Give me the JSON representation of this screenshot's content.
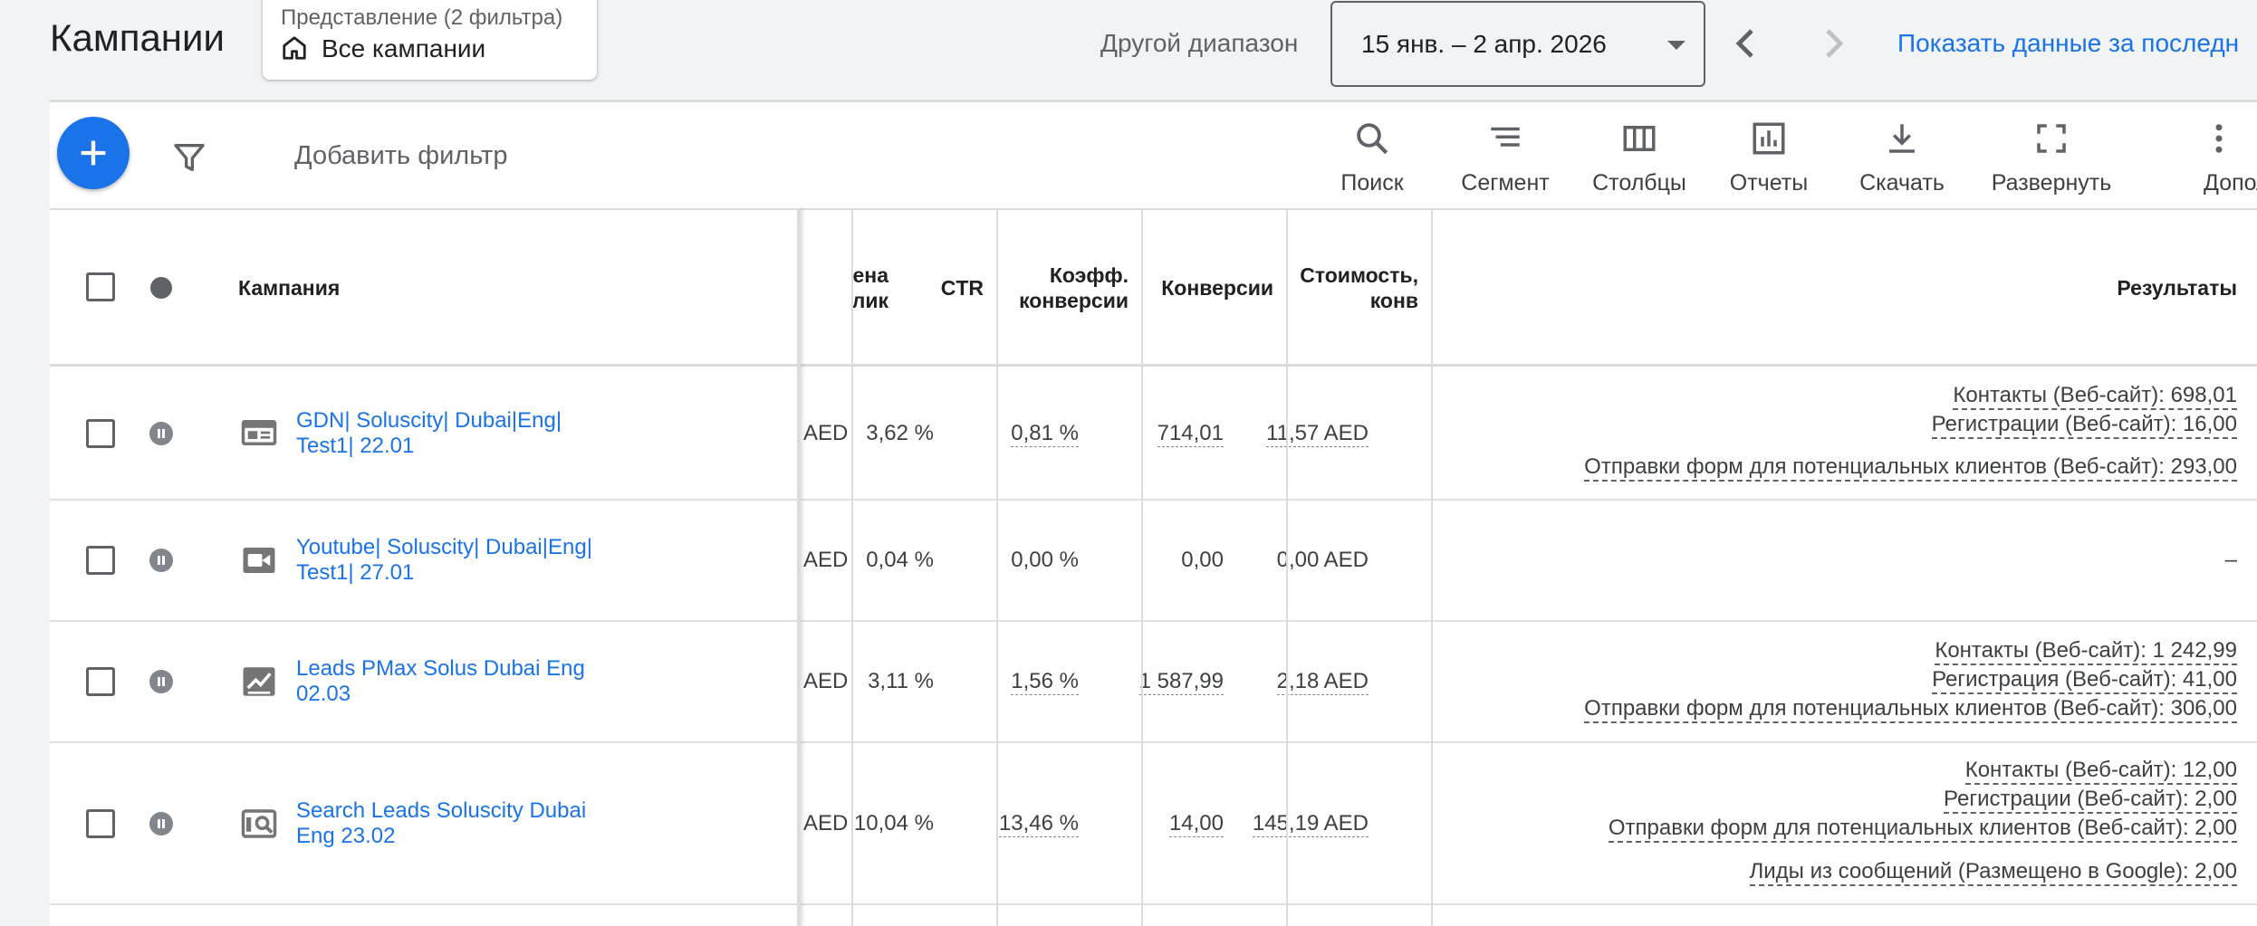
{
  "header": {
    "title": "Кампании",
    "view_caption": "Представление (2 фильтра)",
    "view_name": "Все кампании",
    "range_label": "Другой диапазон",
    "date_range": "15 янв. – 2 апр. 2026",
    "show_data_link": "Показать данные за последн"
  },
  "toolbar": {
    "add_filter": "Добавить фильтр",
    "tools": [
      {
        "label": "Поиск",
        "icon": "search-icon"
      },
      {
        "label": "Сегмент",
        "icon": "segment-icon"
      },
      {
        "label": "Столбцы",
        "icon": "columns-icon"
      },
      {
        "label": "Отчеты",
        "icon": "reports-icon"
      },
      {
        "label": "Скачать",
        "icon": "download-icon"
      },
      {
        "label": "Развернуть",
        "icon": "expand-icon"
      },
      {
        "label": "Дополнит",
        "icon": "more-vert-icon"
      }
    ]
  },
  "table": {
    "headers": {
      "campaign": "Кампания",
      "cpc_line1": "ена",
      "cpc_line2": "лик",
      "ctr": "CTR",
      "conv_rate_line1": "Коэфф.",
      "conv_rate_line2": "конверсии",
      "conversions": "Конверсии",
      "cost_conv_line1": "Стоимость,",
      "cost_conv_line2": "конв",
      "results": "Результаты"
    },
    "rows": [
      {
        "name_line1": "GDN| Soluscity| Dubai|Eng|",
        "name_line2": "Test1| 22.01",
        "type_icon": "display-icon",
        "cpc": "AED",
        "ctr": "3,62 %",
        "conv_rate": "0,81 %",
        "conversions": "714,01",
        "cost_conv": "11,57 AED",
        "results": [
          "Контакты (Веб-сайт): 698,01",
          "Регистрации (Веб-сайт): 16,00",
          "Отправки форм для потенциальных клиентов (Веб-сайт): 293,00"
        ]
      },
      {
        "name_line1": "Youtube| Soluscity| Dubai|Eng|",
        "name_line2": "Test1| 27.01",
        "type_icon": "video-icon",
        "cpc": "AED",
        "ctr": "0,04 %",
        "conv_rate": "0,00 %",
        "conversions": "0,00",
        "cost_conv": "0,00 AED",
        "results_dash": "–"
      },
      {
        "name_line1": "Leads PMax Solus Dubai Eng",
        "name_line2": "02.03",
        "type_icon": "pmax-icon",
        "cpc": "AED",
        "ctr": "3,11 %",
        "conv_rate": "1,56 %",
        "conversions": "1 587,99",
        "cost_conv": "2,18 AED",
        "results": [
          "Контакты (Веб-сайт): 1 242,99",
          "Регистрация (Веб-сайт): 41,00",
          "Отправки форм для потенциальных клиентов (Веб-сайт): 306,00"
        ]
      },
      {
        "name_line1": "Search Leads Soluscity Dubai",
        "name_line2": "Eng 23.02",
        "type_icon": "search-campaign-icon",
        "cpc": "AED",
        "ctr": "10,04 %",
        "conv_rate": "13,46 %",
        "conversions": "14,00",
        "cost_conv": "145,19 AED",
        "results": [
          "Контакты (Веб-сайт): 12,00",
          "Регистрации (Веб-сайт): 2,00",
          "Отправки форм для потенциальных клиентов (Веб-сайт): 2,00",
          "Лиды из сообщений (Размещено в Google): 2,00"
        ]
      }
    ]
  },
  "colors": {
    "accent": "#1a73e8",
    "header_bg": "#f1f3f4",
    "border": "#dadce0"
  }
}
